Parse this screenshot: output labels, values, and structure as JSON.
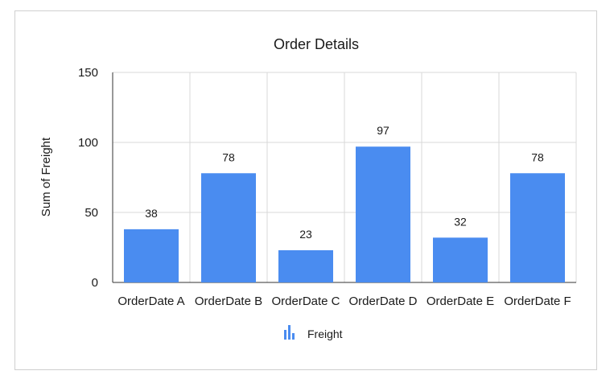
{
  "chart_data": {
    "type": "bar",
    "title": "Order Details",
    "xlabel": "",
    "ylabel": "Sum of Freight",
    "categories": [
      "OrderDate A",
      "OrderDate B",
      "OrderDate C",
      "OrderDate D",
      "OrderDate E",
      "OrderDate F"
    ],
    "series": [
      {
        "name": "Freight",
        "values": [
          38,
          78,
          23,
          97,
          32,
          78
        ]
      }
    ],
    "ylim": [
      0,
      150
    ],
    "yticks": [
      "0",
      "50",
      "100",
      "150"
    ],
    "grid": true,
    "legend_position": "bottom",
    "data_labels": true,
    "colors": {
      "bar": "#4a8cf0",
      "grid": "#d9d9d9",
      "axis": "#333333"
    }
  }
}
